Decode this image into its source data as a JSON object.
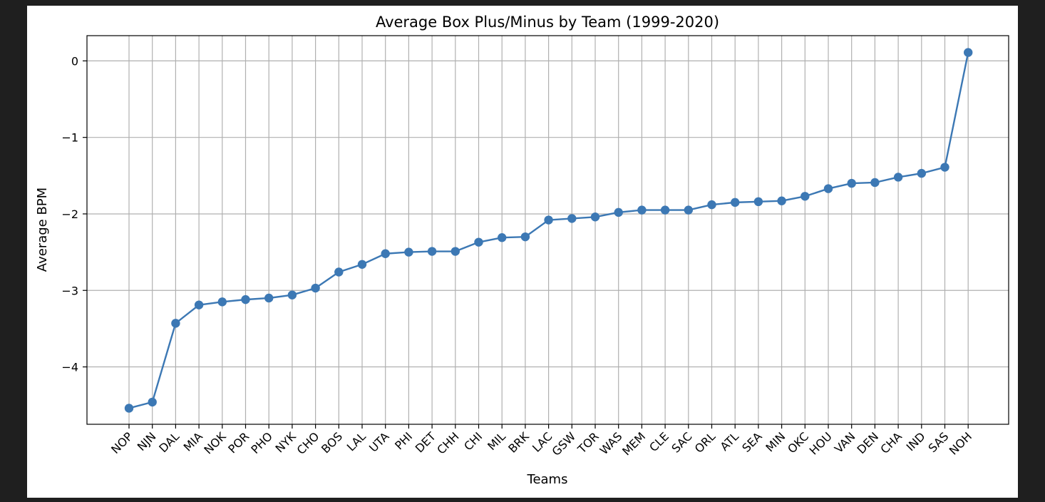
{
  "chart_data": {
    "type": "line",
    "title": "Average Box Plus/Minus by Team (1999-2020)",
    "xlabel": "Teams",
    "ylabel": "Average BPM",
    "categories": [
      "NOP",
      "NJN",
      "DAL",
      "MIA",
      "NOK",
      "POR",
      "PHO",
      "NYK",
      "CHO",
      "BOS",
      "LAL",
      "UTA",
      "PHI",
      "DET",
      "CHH",
      "CHI",
      "MIL",
      "BRK",
      "LAC",
      "GSW",
      "TOR",
      "WAS",
      "MEM",
      "CLE",
      "SAC",
      "ORL",
      "ATL",
      "SEA",
      "MIN",
      "OKC",
      "HOU",
      "VAN",
      "DEN",
      "CHA",
      "IND",
      "SAS",
      "NOH"
    ],
    "values": [
      -4.54,
      -4.46,
      -3.43,
      -3.19,
      -3.15,
      -3.12,
      -3.1,
      -3.06,
      -2.97,
      -2.76,
      -2.66,
      -2.52,
      -2.5,
      -2.49,
      -2.49,
      -2.37,
      -2.31,
      -2.3,
      -2.08,
      -2.06,
      -2.04,
      -1.98,
      -1.95,
      -1.95,
      -1.95,
      -1.88,
      -1.85,
      -1.84,
      -1.83,
      -1.77,
      -1.67,
      -1.6,
      -1.59,
      -1.52,
      -1.47,
      -1.39,
      0.11
    ],
    "y_ticks": [
      0,
      -1,
      -2,
      -3,
      -4
    ],
    "y_tick_labels": [
      "0",
      "−1",
      "−2",
      "−3",
      "−4"
    ],
    "ylim": [
      -4.75,
      0.33
    ],
    "grid": true,
    "marker": "circle",
    "line_color": "#3c78b4",
    "marker_color": "#3c78b4"
  }
}
